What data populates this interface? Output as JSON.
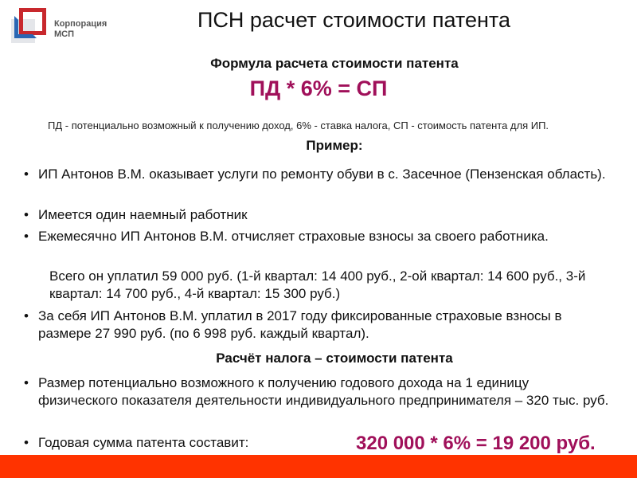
{
  "logo": {
    "text": "Корпорация МСП",
    "colors": {
      "red": "#c8282d",
      "blue": "#2a66b3"
    }
  },
  "title": "ПСН расчет стоимости патента",
  "formula_heading": "Формула расчета стоимости патента",
  "formula": "ПД * 6% = СП",
  "legend": "ПД - потенциально возможный к получению доход, 6% - ставка налога, СП - стоимость патента для ИП.",
  "example_heading": "Пример:",
  "example_items": [
    "ИП Антонов В.М. оказывает услуги по ремонту обуви в с. Засечное (Пензенская область).",
    "Имеется один наемный работник",
    "Ежемесячно ИП Антонов В.М. отчисляет страховые взносы за своего работника.",
    "За себя ИП Антонов В.М. уплатил в 2017 году фиксированные страховые взносы в размере 27 990 руб. (по 6 998 руб. каждый квартал)."
  ],
  "indent_text": "Всего он уплатил 59 000 руб. (1-й квартал: 14 400 руб., 2-ой квартал: 14 600 руб., 3-й квартал: 14 700 руб., 4-й квартал: 15 300 руб.)",
  "calc_heading": "Расчёт налога – стоимости патента",
  "calc_items": [
    "Размер потенциально возможного к получению годового дохода на 1 единицу физического показателя деятельности индивидуального предпринимателя – 320 тыс. руб.",
    "Годовая сумма патента составит:"
  ],
  "result": "320 000 * 6% = 19 200 руб.",
  "colors": {
    "accent": "#a0105a",
    "footer_bar": "#ff3300"
  }
}
